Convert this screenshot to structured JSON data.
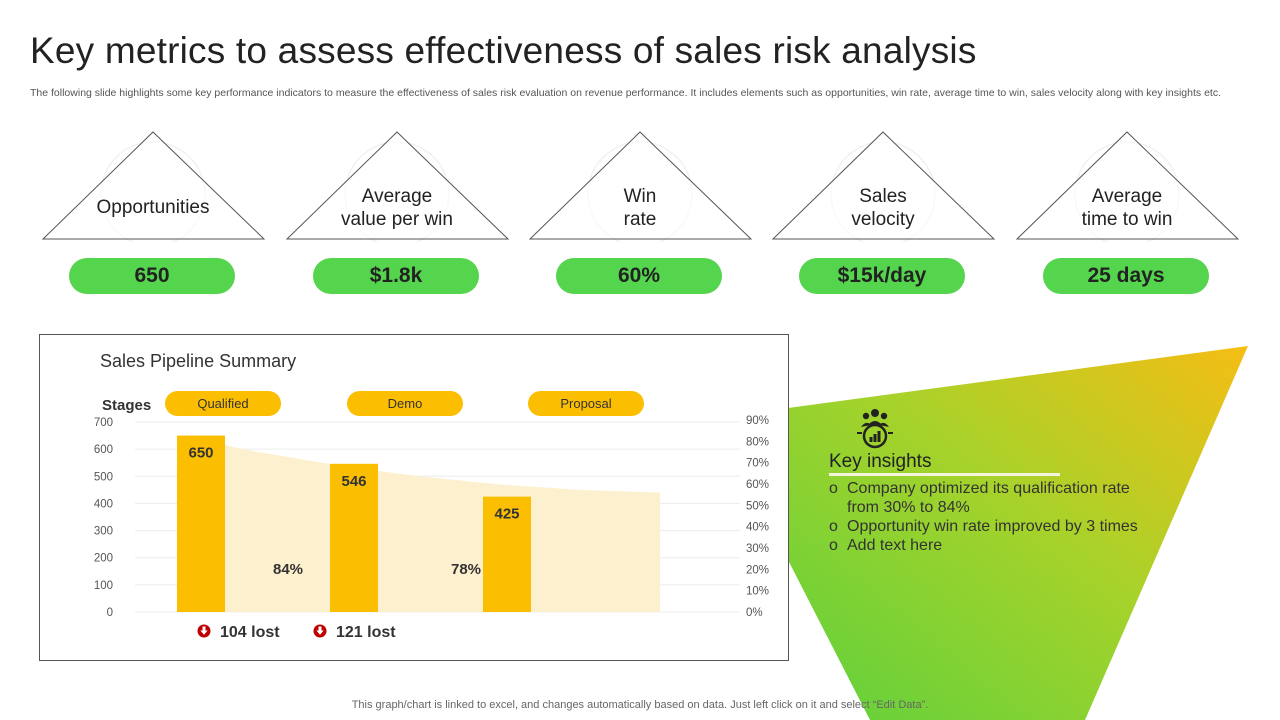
{
  "title": "Key metrics to assess effectiveness of sales risk analysis",
  "subtitle": "The following slide highlights some key performance indicators to measure the effectiveness of sales risk evaluation on revenue performance. It includes elements such as opportunities, win rate, average time to win, sales velocity along with key insights etc.",
  "kpis": [
    {
      "line1": "Opportunities",
      "line2": "",
      "value": "650"
    },
    {
      "line1": "Average",
      "line2": "value per win",
      "value": "$1.8k"
    },
    {
      "line1": "Win",
      "line2": "rate",
      "value": "60%"
    },
    {
      "line1": "Sales",
      "line2": "velocity",
      "value": "$15k/day"
    },
    {
      "line1": "Average",
      "line2": "time to win",
      "value": "25 days"
    }
  ],
  "colors": {
    "pill": "#55d44e",
    "bar": "#fbbe00",
    "area": "#fdf0cf",
    "stage": "#fbbe00",
    "lost_icon": "#c00000",
    "insights_gradient_start": "#5ed13c",
    "insights_gradient_end": "#f6bd14"
  },
  "chart_data": {
    "type": "bar",
    "title": "Sales Pipeline Summary",
    "stages_label": "Stages",
    "categories": [
      "Qualified",
      "Demo",
      "Proposal"
    ],
    "series": [
      {
        "values": [
          650,
          546,
          425
        ]
      }
    ],
    "area_values": [
      650,
      590,
      540,
      500,
      470,
      450,
      440
    ],
    "conversion_rates": [
      "84%",
      "78%"
    ],
    "lost": [
      "104 lost",
      "121 lost"
    ],
    "ylim": [
      0,
      700
    ],
    "yticks": [
      "0",
      "100",
      "200",
      "300",
      "400",
      "500",
      "600",
      "700"
    ],
    "y2ticks": [
      "0%",
      "10%",
      "20%",
      "30%",
      "40%",
      "50%",
      "60%",
      "70%",
      "80%",
      "90%"
    ],
    "grid": true
  },
  "insights": {
    "icon": "team-insight-icon",
    "title": "Key insights",
    "items": [
      "Company optimized its qualification rate from 30% to 84%",
      "Opportunity win rate improved by 3 times",
      "Add text here"
    ],
    "bullet": "o"
  },
  "footer": "This graph/chart is linked to excel, and changes automatically based on data. Just left click on it and select “Edit Data”."
}
